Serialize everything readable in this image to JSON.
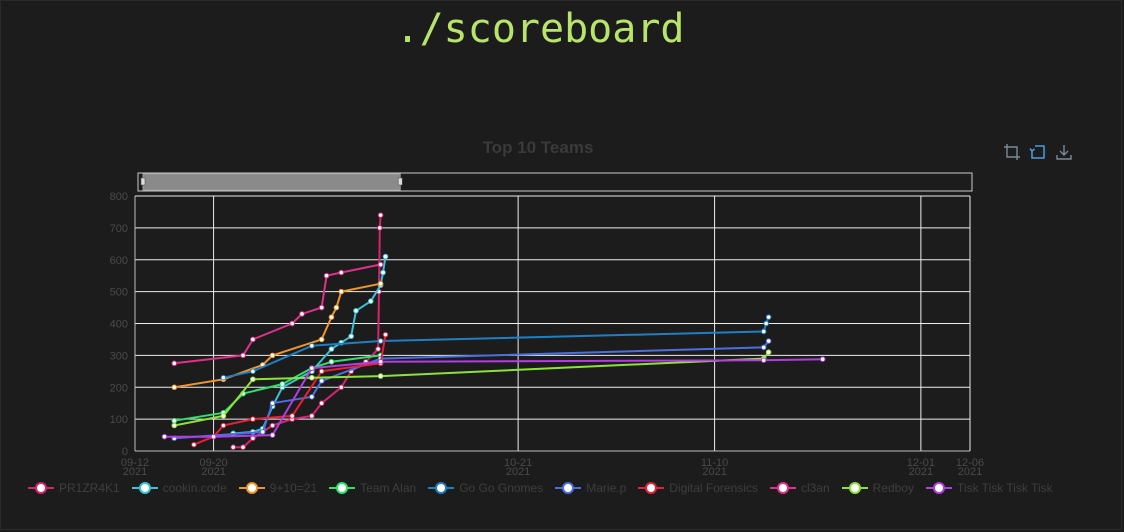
{
  "page": {
    "site_title": "./scoreboard"
  },
  "toolbar": {
    "icons": [
      "crop-zoom-icon",
      "zoom-reset-icon",
      "download-icon"
    ]
  },
  "chart_data": {
    "type": "line",
    "title": "Top 10 Teams",
    "xlabel": "",
    "ylabel": "",
    "ylim": [
      0,
      800
    ],
    "yticks": [
      0,
      100,
      200,
      300,
      400,
      500,
      600,
      700,
      800
    ],
    "xlim": [
      "2021-09-12",
      "2021-12-06"
    ],
    "xticks": [
      {
        "date": "2021-09-12",
        "label1": "09-12",
        "label2": "2021"
      },
      {
        "date": "2021-09-20",
        "label1": "09-20",
        "label2": "2021"
      },
      {
        "date": "2021-10-21",
        "label1": "10-21",
        "label2": "2021"
      },
      {
        "date": "2021-11-10",
        "label1": "11-10",
        "label2": "2021"
      },
      {
        "date": "2021-12-01",
        "label1": "12-01",
        "label2": "2021"
      },
      {
        "date": "2021-12-06",
        "label1": "12-06",
        "label2": "2021"
      }
    ],
    "grid": true,
    "legend_position": "bottom",
    "range_selector": {
      "start": "2021-09-12",
      "end": "2021-10-09"
    },
    "series": [
      {
        "name": "PR1ZR4K1",
        "color": "#d6246e",
        "points": [
          [
            "2021-09-22T00:00",
            12
          ],
          [
            "2021-09-23T00:00",
            12
          ],
          [
            "2021-09-24T00:00",
            40
          ],
          [
            "2021-09-25T00:00",
            60
          ],
          [
            "2021-09-26T00:00",
            80
          ],
          [
            "2021-09-28T00:00",
            100
          ],
          [
            "2021-09-30T00:00",
            110
          ],
          [
            "2021-10-01T00:00",
            150
          ],
          [
            "2021-10-03T00:00",
            200
          ],
          [
            "2021-10-04T00:00",
            250
          ],
          [
            "2021-10-05T12:00",
            280
          ],
          [
            "2021-10-06T18:00",
            320
          ],
          [
            "2021-10-06T20:00",
            500
          ],
          [
            "2021-10-06T22:00",
            700
          ],
          [
            "2021-10-07T00:00",
            740
          ]
        ]
      },
      {
        "name": "cookin.code",
        "color": "#3ac1d9",
        "points": [
          [
            "2021-09-22T00:00",
            55
          ],
          [
            "2021-09-24T00:00",
            60
          ],
          [
            "2021-09-25T00:00",
            70
          ],
          [
            "2021-09-26T00:00",
            140
          ],
          [
            "2021-09-27T00:00",
            200
          ],
          [
            "2021-09-30T00:00",
            250
          ],
          [
            "2021-10-02T00:00",
            320
          ],
          [
            "2021-10-03T00:00",
            340
          ],
          [
            "2021-10-04T00:00",
            360
          ],
          [
            "2021-10-04T12:00",
            440
          ],
          [
            "2021-10-06T00:00",
            470
          ],
          [
            "2021-10-07T00:00",
            520
          ],
          [
            "2021-10-07T06:00",
            560
          ],
          [
            "2021-10-07T12:00",
            610
          ]
        ]
      },
      {
        "name": "9+10=21",
        "color": "#f0952a",
        "points": [
          [
            "2021-09-16T00:00",
            200
          ],
          [
            "2021-09-21T00:00",
            225
          ],
          [
            "2021-09-25T00:00",
            270
          ],
          [
            "2021-09-26T00:00",
            300
          ],
          [
            "2021-10-01T00:00",
            350
          ],
          [
            "2021-10-02T00:00",
            420
          ],
          [
            "2021-10-02T12:00",
            450
          ],
          [
            "2021-10-03T00:00",
            500
          ],
          [
            "2021-10-07T00:00",
            525
          ]
        ]
      },
      {
        "name": "Team Alan",
        "color": "#2ee06c",
        "points": [
          [
            "2021-09-16T00:00",
            95
          ],
          [
            "2021-09-21T00:00",
            120
          ],
          [
            "2021-09-23T00:00",
            180
          ],
          [
            "2021-09-27T00:00",
            210
          ],
          [
            "2021-09-30T00:00",
            260
          ],
          [
            "2021-10-02T00:00",
            280
          ],
          [
            "2021-10-07T00:00",
            300
          ]
        ]
      },
      {
        "name": "Go Go Gnomes",
        "color": "#1f7fc4",
        "points": [
          [
            "2021-09-21T00:00",
            230
          ],
          [
            "2021-09-24T00:00",
            250
          ],
          [
            "2021-09-30T00:00",
            330
          ],
          [
            "2021-10-07T00:00",
            345
          ],
          [
            "2021-11-15T00:00",
            375
          ],
          [
            "2021-11-15T06:00",
            400
          ],
          [
            "2021-11-15T12:00",
            420
          ]
        ]
      },
      {
        "name": "Marie.p",
        "color": "#4b6fe0",
        "points": [
          [
            "2021-09-16T00:00",
            40
          ],
          [
            "2021-09-25T00:00",
            60
          ],
          [
            "2021-09-26T00:00",
            150
          ],
          [
            "2021-09-30T00:00",
            170
          ],
          [
            "2021-10-01T00:00",
            220
          ],
          [
            "2021-10-07T00:00",
            290
          ],
          [
            "2021-11-15T00:00",
            325
          ],
          [
            "2021-11-15T12:00",
            345
          ]
        ]
      },
      {
        "name": "Digital Forensics",
        "color": "#e8203a",
        "points": [
          [
            "2021-09-18T00:00",
            20
          ],
          [
            "2021-09-20T00:00",
            45
          ],
          [
            "2021-09-21T00:00",
            80
          ],
          [
            "2021-09-24T00:00",
            100
          ],
          [
            "2021-09-28T00:00",
            110
          ],
          [
            "2021-10-01T00:00",
            250
          ],
          [
            "2021-10-07T00:00",
            275
          ],
          [
            "2021-10-07T12:00",
            365
          ]
        ]
      },
      {
        "name": "cl3an",
        "color": "#e0308a",
        "points": [
          [
            "2021-09-16T00:00",
            275
          ],
          [
            "2021-09-23T00:00",
            300
          ],
          [
            "2021-09-24T00:00",
            350
          ],
          [
            "2021-09-28T00:00",
            400
          ],
          [
            "2021-09-29T00:00",
            430
          ],
          [
            "2021-10-01T00:00",
            450
          ],
          [
            "2021-10-01T12:00",
            550
          ],
          [
            "2021-10-03T00:00",
            560
          ],
          [
            "2021-10-07T00:00",
            585
          ]
        ]
      },
      {
        "name": "Redboy",
        "color": "#8de23a",
        "points": [
          [
            "2021-09-16T00:00",
            80
          ],
          [
            "2021-09-21T00:00",
            110
          ],
          [
            "2021-09-24T00:00",
            225
          ],
          [
            "2021-09-30T00:00",
            230
          ],
          [
            "2021-10-07T00:00",
            235
          ],
          [
            "2021-11-15T00:00",
            290
          ],
          [
            "2021-11-15T12:00",
            310
          ]
        ]
      },
      {
        "name": "Tisk Tisk Tisk Tisk",
        "color": "#b13ee0",
        "points": [
          [
            "2021-09-15T00:00",
            45
          ],
          [
            "2021-09-20T00:00",
            45
          ],
          [
            "2021-09-26T00:00",
            50
          ],
          [
            "2021-09-30T00:00",
            260
          ],
          [
            "2021-10-07T00:00",
            280
          ],
          [
            "2021-11-15T00:00",
            285
          ],
          [
            "2021-11-21T00:00",
            288
          ]
        ]
      }
    ]
  }
}
